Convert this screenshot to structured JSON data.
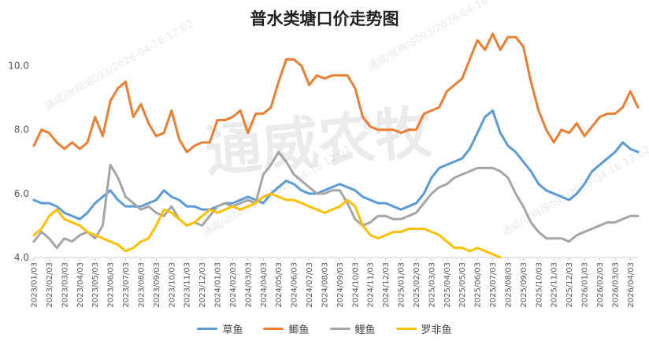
{
  "chart_data": {
    "type": "line",
    "title": "普水类塘口价走势图",
    "watermark": "通威农牧",
    "watermark_small": "通威/张梅/8093/2026-04-16 12:02",
    "ylim": [
      4.0,
      11.0
    ],
    "y_ticks": [
      "4.0",
      "6.0",
      "8.0",
      "10.0"
    ],
    "y_tick_values": [
      4.0,
      6.0,
      8.0,
      10.0
    ],
    "x_ticks": [
      "2023/01/03",
      "2023/02/03",
      "2023/03/03",
      "2023/04/03",
      "2023/05/03",
      "2023/06/03",
      "2023/07/03",
      "2023/08/03",
      "2023/09/03",
      "2023/10/03",
      "2023/11/03",
      "2023/12/03",
      "2024/01/03",
      "2024/02/03",
      "2024/03/03",
      "2024/04/03",
      "2024/05/03",
      "2024/06/03",
      "2024/07/03",
      "2024/08/03",
      "2024/09/03",
      "2024/10/03",
      "2024/11/03",
      "2024/12/03",
      "2025/01/03",
      "2025/02/03",
      "2025/03/03",
      "2025/04/03",
      "2025/05/03",
      "2025/06/03",
      "2025/07/03",
      "2025/08/03",
      "2025/09/03",
      "2025/10/03",
      "2025/11/03",
      "2025/12/03",
      "2026/01/03",
      "2026/02/03",
      "2026/03/03",
      "2026/04/03"
    ],
    "x_month_index": [
      0,
      1,
      2,
      3,
      4,
      5,
      6,
      7,
      8,
      9,
      10,
      11,
      12,
      13,
      14,
      15,
      16,
      17,
      18,
      19,
      20,
      21,
      22,
      23,
      24,
      25,
      26,
      27,
      28,
      29,
      30,
      31,
      32,
      33,
      34,
      35,
      36,
      37,
      38,
      39
    ],
    "series": [
      {
        "name": "草鱼",
        "color": "#5b9bd5",
        "points": [
          [
            0,
            5.8
          ],
          [
            0.5,
            5.7
          ],
          [
            1,
            5.7
          ],
          [
            1.5,
            5.6
          ],
          [
            2,
            5.4
          ],
          [
            2.5,
            5.3
          ],
          [
            3,
            5.2
          ],
          [
            3.5,
            5.4
          ],
          [
            4,
            5.7
          ],
          [
            4.5,
            5.9
          ],
          [
            5,
            6.1
          ],
          [
            5.5,
            5.8
          ],
          [
            6,
            5.6
          ],
          [
            6.5,
            5.6
          ],
          [
            7,
            5.6
          ],
          [
            7.5,
            5.7
          ],
          [
            8,
            5.8
          ],
          [
            8.5,
            6.1
          ],
          [
            9,
            5.9
          ],
          [
            9.5,
            5.8
          ],
          [
            10,
            5.6
          ],
          [
            10.5,
            5.6
          ],
          [
            11,
            5.5
          ],
          [
            11.5,
            5.5
          ],
          [
            12,
            5.6
          ],
          [
            12.5,
            5.7
          ],
          [
            13,
            5.7
          ],
          [
            13.5,
            5.8
          ],
          [
            14,
            5.9
          ],
          [
            14.5,
            5.8
          ],
          [
            15,
            5.7
          ],
          [
            15.5,
            6.0
          ],
          [
            16,
            6.2
          ],
          [
            16.5,
            6.4
          ],
          [
            17,
            6.3
          ],
          [
            17.5,
            6.1
          ],
          [
            18,
            6.0
          ],
          [
            18.5,
            6.0
          ],
          [
            19,
            6.1
          ],
          [
            19.5,
            6.2
          ],
          [
            20,
            6.3
          ],
          [
            20.5,
            6.2
          ],
          [
            21,
            6.1
          ],
          [
            21.5,
            5.9
          ],
          [
            22,
            5.8
          ],
          [
            22.5,
            5.7
          ],
          [
            23,
            5.7
          ],
          [
            23.5,
            5.6
          ],
          [
            24,
            5.5
          ],
          [
            24.5,
            5.6
          ],
          [
            25,
            5.7
          ],
          [
            25.5,
            6.0
          ],
          [
            26,
            6.5
          ],
          [
            26.5,
            6.8
          ],
          [
            27,
            6.9
          ],
          [
            27.5,
            7.0
          ],
          [
            28,
            7.1
          ],
          [
            28.5,
            7.4
          ],
          [
            29,
            7.9
          ],
          [
            29.5,
            8.4
          ],
          [
            30,
            8.6
          ],
          [
            30.5,
            7.9
          ],
          [
            31,
            7.5
          ],
          [
            31.5,
            7.3
          ],
          [
            32,
            7.0
          ],
          [
            32.5,
            6.7
          ],
          [
            33,
            6.3
          ],
          [
            33.5,
            6.1
          ],
          [
            34,
            6.0
          ],
          [
            34.5,
            5.9
          ],
          [
            35,
            5.8
          ],
          [
            35.5,
            6.0
          ],
          [
            36,
            6.3
          ],
          [
            36.5,
            6.7
          ],
          [
            37,
            6.9
          ],
          [
            37.5,
            7.1
          ],
          [
            38,
            7.3
          ],
          [
            38.5,
            7.6
          ],
          [
            39,
            7.4
          ],
          [
            39.5,
            7.3
          ]
        ]
      },
      {
        "name": "鲫鱼",
        "color": "#ed7d31",
        "points": [
          [
            0,
            7.5
          ],
          [
            0.5,
            8.0
          ],
          [
            1,
            7.9
          ],
          [
            1.5,
            7.6
          ],
          [
            2,
            7.4
          ],
          [
            2.5,
            7.6
          ],
          [
            3,
            7.4
          ],
          [
            3.5,
            7.6
          ],
          [
            4,
            8.4
          ],
          [
            4.5,
            7.8
          ],
          [
            5,
            8.9
          ],
          [
            5.5,
            9.3
          ],
          [
            6,
            9.5
          ],
          [
            6.5,
            8.4
          ],
          [
            7,
            8.8
          ],
          [
            7.5,
            8.2
          ],
          [
            8,
            7.8
          ],
          [
            8.5,
            7.9
          ],
          [
            9,
            8.6
          ],
          [
            9.5,
            7.7
          ],
          [
            10,
            7.3
          ],
          [
            10.5,
            7.5
          ],
          [
            11,
            7.6
          ],
          [
            11.5,
            7.6
          ],
          [
            12,
            8.3
          ],
          [
            12.5,
            8.3
          ],
          [
            13,
            8.4
          ],
          [
            13.5,
            8.6
          ],
          [
            14,
            7.9
          ],
          [
            14.5,
            8.5
          ],
          [
            15,
            8.5
          ],
          [
            15.5,
            8.7
          ],
          [
            16,
            9.5
          ],
          [
            16.5,
            10.2
          ],
          [
            17,
            10.2
          ],
          [
            17.5,
            10.0
          ],
          [
            18,
            9.4
          ],
          [
            18.5,
            9.7
          ],
          [
            19,
            9.6
          ],
          [
            19.5,
            9.7
          ],
          [
            20,
            9.7
          ],
          [
            20.5,
            9.7
          ],
          [
            21,
            9.3
          ],
          [
            21.5,
            8.4
          ],
          [
            22,
            8.1
          ],
          [
            22.5,
            8.0
          ],
          [
            23,
            8.0
          ],
          [
            23.5,
            8.0
          ],
          [
            24,
            7.9
          ],
          [
            24.5,
            8.0
          ],
          [
            25,
            8.0
          ],
          [
            25.5,
            8.5
          ],
          [
            26,
            8.6
          ],
          [
            26.5,
            8.7
          ],
          [
            27,
            9.2
          ],
          [
            27.5,
            9.4
          ],
          [
            28,
            9.6
          ],
          [
            28.5,
            10.2
          ],
          [
            29,
            10.8
          ],
          [
            29.5,
            10.5
          ],
          [
            30,
            11.0
          ],
          [
            30.5,
            10.5
          ],
          [
            31,
            10.9
          ],
          [
            31.5,
            10.9
          ],
          [
            32,
            10.6
          ],
          [
            32.5,
            9.5
          ],
          [
            33,
            8.6
          ],
          [
            33.5,
            8.0
          ],
          [
            34,
            7.6
          ],
          [
            34.5,
            8.0
          ],
          [
            35,
            7.9
          ],
          [
            35.5,
            8.2
          ],
          [
            36,
            7.8
          ],
          [
            36.5,
            8.1
          ],
          [
            37,
            8.4
          ],
          [
            37.5,
            8.5
          ],
          [
            38,
            8.5
          ],
          [
            38.5,
            8.7
          ],
          [
            39,
            9.2
          ],
          [
            39.5,
            8.7
          ]
        ]
      },
      {
        "name": "鲤鱼",
        "color": "#a5a5a5",
        "points": [
          [
            0,
            4.5
          ],
          [
            0.5,
            4.8
          ],
          [
            1,
            4.6
          ],
          [
            1.5,
            4.3
          ],
          [
            2,
            4.6
          ],
          [
            2.5,
            4.5
          ],
          [
            3,
            4.7
          ],
          [
            3.5,
            4.8
          ],
          [
            4,
            4.6
          ],
          [
            4.5,
            5.0
          ],
          [
            5,
            6.9
          ],
          [
            5.5,
            6.5
          ],
          [
            6,
            5.9
          ],
          [
            6.5,
            5.7
          ],
          [
            7,
            5.5
          ],
          [
            7.5,
            5.6
          ],
          [
            8,
            5.4
          ],
          [
            8.5,
            5.3
          ],
          [
            9,
            5.6
          ],
          [
            9.5,
            5.2
          ],
          [
            10,
            5.0
          ],
          [
            10.5,
            5.1
          ],
          [
            11,
            5.0
          ],
          [
            11.5,
            5.3
          ],
          [
            12,
            5.6
          ],
          [
            12.5,
            5.7
          ],
          [
            13,
            5.6
          ],
          [
            13.5,
            5.7
          ],
          [
            14,
            5.8
          ],
          [
            14.5,
            5.7
          ],
          [
            15,
            6.6
          ],
          [
            15.5,
            6.9
          ],
          [
            16,
            7.3
          ],
          [
            16.5,
            7.0
          ],
          [
            17,
            6.6
          ],
          [
            17.5,
            6.4
          ],
          [
            18,
            6.2
          ],
          [
            18.5,
            6.0
          ],
          [
            19,
            6.0
          ],
          [
            19.5,
            6.1
          ],
          [
            20,
            6.1
          ],
          [
            20.5,
            5.7
          ],
          [
            21,
            5.2
          ],
          [
            21.5,
            5.0
          ],
          [
            22,
            5.1
          ],
          [
            22.5,
            5.3
          ],
          [
            23,
            5.3
          ],
          [
            23.5,
            5.2
          ],
          [
            24,
            5.2
          ],
          [
            24.5,
            5.3
          ],
          [
            25,
            5.4
          ],
          [
            25.5,
            5.7
          ],
          [
            26,
            6.0
          ],
          [
            26.5,
            6.2
          ],
          [
            27,
            6.3
          ],
          [
            27.5,
            6.5
          ],
          [
            28,
            6.6
          ],
          [
            28.5,
            6.7
          ],
          [
            29,
            6.8
          ],
          [
            29.5,
            6.8
          ],
          [
            30,
            6.8
          ],
          [
            30.5,
            6.7
          ],
          [
            31,
            6.5
          ],
          [
            31.5,
            6.0
          ],
          [
            32,
            5.6
          ],
          [
            32.5,
            5.1
          ],
          [
            33,
            4.8
          ],
          [
            33.5,
            4.6
          ],
          [
            34,
            4.6
          ],
          [
            34.5,
            4.6
          ],
          [
            35,
            4.5
          ],
          [
            35.5,
            4.7
          ],
          [
            36,
            4.8
          ],
          [
            36.5,
            4.9
          ],
          [
            37,
            5.0
          ],
          [
            37.5,
            5.1
          ],
          [
            38,
            5.1
          ],
          [
            38.5,
            5.2
          ],
          [
            39,
            5.3
          ],
          [
            39.5,
            5.3
          ]
        ]
      },
      {
        "name": "罗非鱼",
        "color": "#ffc000",
        "points": [
          [
            0,
            4.7
          ],
          [
            0.5,
            4.9
          ],
          [
            1,
            5.3
          ],
          [
            1.5,
            5.5
          ],
          [
            2,
            5.2
          ],
          [
            2.5,
            5.1
          ],
          [
            3,
            5.0
          ],
          [
            3.5,
            4.8
          ],
          [
            4,
            4.7
          ],
          [
            4.5,
            4.6
          ],
          [
            5,
            4.5
          ],
          [
            5.5,
            4.4
          ],
          [
            6,
            4.2
          ],
          [
            6.5,
            4.3
          ],
          [
            7,
            4.5
          ],
          [
            7.5,
            4.6
          ],
          [
            8,
            5.0
          ],
          [
            8.5,
            5.5
          ],
          [
            9,
            5.4
          ],
          [
            9.5,
            5.2
          ],
          [
            10,
            5.0
          ],
          [
            10.5,
            5.1
          ],
          [
            11,
            5.3
          ],
          [
            11.5,
            5.5
          ],
          [
            12,
            5.4
          ],
          [
            12.5,
            5.5
          ],
          [
            13,
            5.6
          ],
          [
            13.5,
            5.5
          ],
          [
            14,
            5.6
          ],
          [
            14.5,
            5.7
          ],
          [
            15,
            5.9
          ],
          [
            15.5,
            6.0
          ],
          [
            16,
            5.9
          ],
          [
            16.5,
            5.8
          ],
          [
            17,
            5.8
          ],
          [
            17.5,
            5.7
          ],
          [
            18,
            5.6
          ],
          [
            18.5,
            5.5
          ],
          [
            19,
            5.4
          ],
          [
            19.5,
            5.5
          ],
          [
            20,
            5.6
          ],
          [
            20.5,
            5.8
          ],
          [
            21,
            5.6
          ],
          [
            21.5,
            5.0
          ],
          [
            22,
            4.7
          ],
          [
            22.5,
            4.6
          ],
          [
            23,
            4.7
          ],
          [
            23.5,
            4.8
          ],
          [
            24,
            4.8
          ],
          [
            24.5,
            4.9
          ],
          [
            25,
            4.9
          ],
          [
            25.5,
            4.9
          ],
          [
            26,
            4.8
          ],
          [
            26.5,
            4.7
          ],
          [
            27,
            4.5
          ],
          [
            27.5,
            4.3
          ],
          [
            28,
            4.3
          ],
          [
            28.5,
            4.2
          ],
          [
            29,
            4.3
          ],
          [
            29.5,
            4.2
          ],
          [
            30,
            4.1
          ],
          [
            30.5,
            4.0
          ]
        ]
      }
    ],
    "legend_position": "bottom",
    "grid": false
  }
}
